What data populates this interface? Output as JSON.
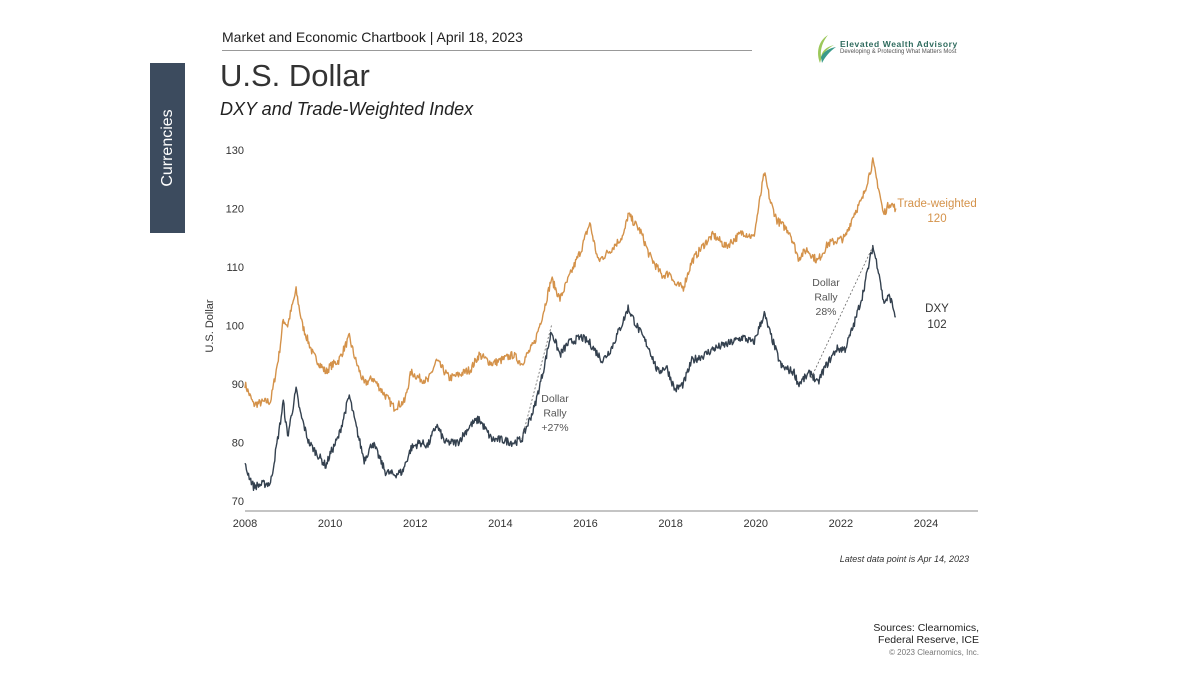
{
  "header": {
    "chartbook": "Market and Economic Chartbook | April 18, 2023"
  },
  "logo": {
    "name": "Elevated Wealth Advisory",
    "tagline": "Developing & Protecting What Matters Most"
  },
  "section_tab": "Currencies",
  "title": "U.S. Dollar",
  "subtitle": "DXY and Trade-Weighted Index",
  "footnote": "Latest data point is Apr 14, 2023",
  "sources_line1": "Sources: Clearnomics,",
  "sources_line2": "Federal Reserve, ICE",
  "copyright": "© 2023 Clearnomics, Inc.",
  "chart_data": {
    "type": "line",
    "ylabel": "U.S. Dollar",
    "xlim": [
      2008,
      2025.2
    ],
    "ylim": [
      70,
      130
    ],
    "yticks": [
      "70",
      "80",
      "90",
      "100",
      "110",
      "120",
      "130"
    ],
    "xticks": [
      "2008",
      "2010",
      "2012",
      "2014",
      "2016",
      "2018",
      "2020",
      "2022",
      "2024"
    ],
    "grid": false,
    "series": [
      {
        "name": "Trade-weighted",
        "end_label": "120",
        "color": "#d4924a",
        "x": [
          2008.0,
          2008.2,
          2008.5,
          2008.6,
          2008.8,
          2008.9,
          2009.0,
          2009.2,
          2009.35,
          2009.6,
          2009.9,
          2010.0,
          2010.2,
          2010.45,
          2010.6,
          2010.8,
          2011.0,
          2011.3,
          2011.5,
          2011.75,
          2011.9,
          2012.1,
          2012.3,
          2012.5,
          2012.8,
          2013.0,
          2013.3,
          2013.5,
          2013.8,
          2014.0,
          2014.3,
          2014.5,
          2014.8,
          2015.0,
          2015.2,
          2015.4,
          2015.6,
          2015.9,
          2016.1,
          2016.3,
          2016.6,
          2016.9,
          2017.0,
          2017.3,
          2017.5,
          2017.8,
          2018.0,
          2018.1,
          2018.3,
          2018.5,
          2018.8,
          2019.0,
          2019.3,
          2019.7,
          2019.95,
          2020.2,
          2020.35,
          2020.5,
          2020.8,
          2021.0,
          2021.2,
          2021.45,
          2021.7,
          2021.9,
          2022.1,
          2022.3,
          2022.5,
          2022.75,
          2022.9,
          2023.0,
          2023.15,
          2023.29
        ],
        "y": [
          90,
          86.5,
          87,
          87,
          95,
          101,
          100,
          106,
          100,
          95,
          92,
          93,
          94,
          98,
          94,
          90,
          91,
          88,
          86,
          87,
          92,
          91,
          90.5,
          94,
          91,
          91.5,
          92.5,
          95,
          93.5,
          94,
          95,
          93.5,
          97,
          102,
          108,
          104.5,
          108,
          113,
          117.5,
          111,
          113,
          115.5,
          119,
          116,
          112,
          108.5,
          109,
          107,
          106.5,
          111,
          114,
          115.5,
          113.5,
          116,
          115,
          126,
          121,
          118,
          116,
          111.5,
          113,
          111,
          114,
          114.5,
          115,
          119,
          121.5,
          128,
          123,
          119,
          121,
          120
        ]
      },
      {
        "name": "DXY",
        "end_label": "102",
        "color": "#34414f",
        "x": [
          2008.0,
          2008.2,
          2008.5,
          2008.6,
          2008.8,
          2008.9,
          2009.0,
          2009.2,
          2009.3,
          2009.5,
          2009.9,
          2010.0,
          2010.2,
          2010.45,
          2010.6,
          2010.8,
          2011.0,
          2011.3,
          2011.5,
          2011.7,
          2011.9,
          2012.1,
          2012.3,
          2012.5,
          2012.7,
          2013.0,
          2013.3,
          2013.5,
          2013.8,
          2014.0,
          2014.3,
          2014.5,
          2014.8,
          2015.0,
          2015.2,
          2015.4,
          2015.6,
          2015.9,
          2016.1,
          2016.4,
          2016.6,
          2016.9,
          2017.0,
          2017.2,
          2017.5,
          2017.7,
          2017.9,
          2018.1,
          2018.3,
          2018.5,
          2018.8,
          2019.0,
          2019.4,
          2019.7,
          2019.95,
          2020.2,
          2020.3,
          2020.6,
          2020.9,
          2021.0,
          2021.3,
          2021.45,
          2021.6,
          2021.9,
          2022.1,
          2022.3,
          2022.5,
          2022.75,
          2022.9,
          2023.0,
          2023.15,
          2023.29
        ],
        "y": [
          76,
          72.5,
          73,
          73,
          82,
          87,
          81,
          89,
          85,
          80,
          76,
          78,
          81,
          88,
          83,
          77,
          80,
          75,
          74.5,
          75,
          79,
          80,
          79.5,
          83,
          80,
          80,
          83,
          84,
          80.5,
          80.5,
          80,
          80.5,
          86,
          92,
          99,
          95,
          97,
          98,
          97,
          94,
          96,
          101,
          103,
          100,
          96,
          92,
          93,
          89,
          90,
          94,
          95,
          96,
          97,
          98,
          97,
          102,
          99.5,
          93,
          92,
          90,
          92,
          90,
          92.5,
          96,
          96,
          100,
          105,
          113.5,
          109,
          104,
          105,
          101.5
        ]
      }
    ],
    "annotations": [
      {
        "text_lines": [
          "Dollar",
          "Rally",
          "+27%"
        ],
        "from": [
          2014.5,
          80.5
        ],
        "to": [
          2015.2,
          100
        ]
      },
      {
        "text_lines": [
          "Dollar",
          "Rally",
          "28%"
        ],
        "from": [
          2021.3,
          91
        ],
        "to": [
          2022.75,
          113.5
        ]
      }
    ]
  }
}
